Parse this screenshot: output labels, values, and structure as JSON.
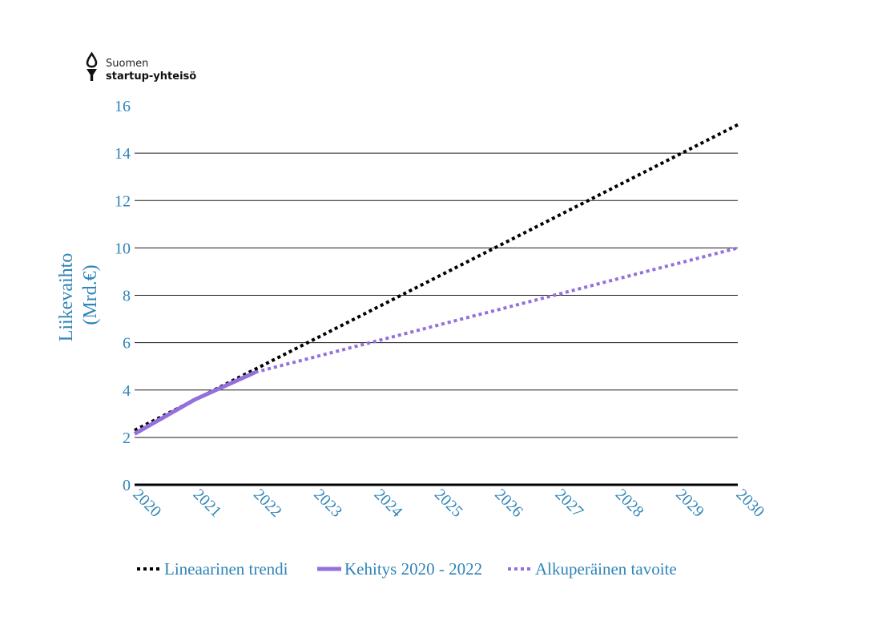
{
  "logo": {
    "line1": "Suomen",
    "line2": "startup-yhteisö"
  },
  "colors": {
    "label": "#2f84b8",
    "grid": "#1a1a1a",
    "trend": "#000000",
    "actual": "#9370db",
    "target": "#9370db"
  },
  "chart_data": {
    "type": "line",
    "title": "",
    "xlabel": "",
    "ylabel_lines": [
      "Liikevaihto",
      "(Mrd.€)"
    ],
    "xlim": [
      2020,
      2030
    ],
    "ylim": [
      0,
      16
    ],
    "x_ticks": [
      "2020",
      "2021",
      "2022",
      "2023",
      "2024",
      "2025",
      "2026",
      "2027",
      "2028",
      "2029",
      "2030"
    ],
    "y_ticks": [
      "0",
      "2",
      "4",
      "6",
      "8",
      "10",
      "12",
      "14",
      "16"
    ],
    "grid": true,
    "legend_position": "bottom-center",
    "series": [
      {
        "name": "Lineaarinen trendi",
        "style": "dotted",
        "color": "#000000",
        "x": [
          2020,
          2030
        ],
        "y": [
          2.3,
          15.2
        ]
      },
      {
        "name": "Kehitys 2020 - 2022",
        "style": "solid",
        "color": "#9370db",
        "x": [
          2020,
          2021,
          2022
        ],
        "y": [
          2.15,
          3.6,
          4.75
        ]
      },
      {
        "name": "Alkuperäinen tavoite",
        "style": "dotted",
        "color": "#9370db",
        "x": [
          2022,
          2030
        ],
        "y": [
          4.75,
          10.0
        ]
      }
    ]
  }
}
